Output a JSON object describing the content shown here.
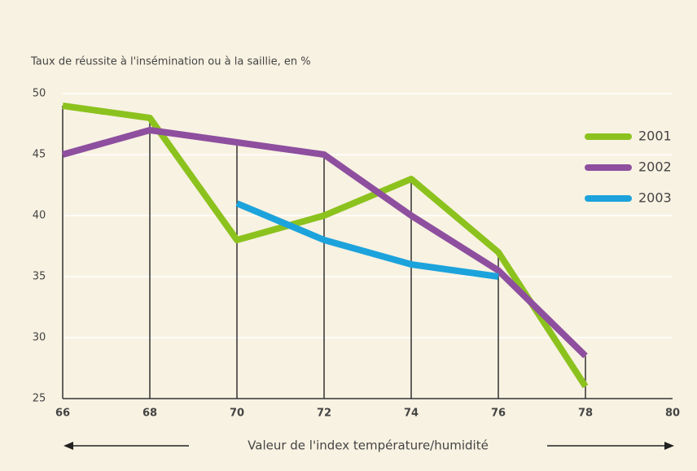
{
  "chart_data": {
    "type": "line",
    "title": "Taux de réussite à l'insémination ou à la saillie, en %",
    "x_label": "Valeur de l'index température/humidité",
    "x": [
      66,
      68,
      70,
      72,
      74,
      76,
      78
    ],
    "series": [
      {
        "name": "2001",
        "color": "#8cc21e",
        "values": [
          49,
          48,
          38,
          40,
          43,
          37,
          26
        ]
      },
      {
        "name": "2002",
        "color": "#8e4f9f",
        "values": [
          45,
          47,
          46,
          45,
          40,
          35.5,
          28.5
        ]
      },
      {
        "name": "2003",
        "color": "#1ca3dc",
        "values": [
          null,
          null,
          41,
          38,
          36,
          35,
          null
        ]
      }
    ],
    "xlim": [
      66,
      80
    ],
    "xticks": [
      66,
      68,
      70,
      72,
      74,
      76,
      78,
      80
    ],
    "ylim": [
      25,
      50
    ],
    "yticks": [
      25,
      30,
      35,
      40,
      45,
      50
    ],
    "grid": true,
    "legend": "right"
  }
}
